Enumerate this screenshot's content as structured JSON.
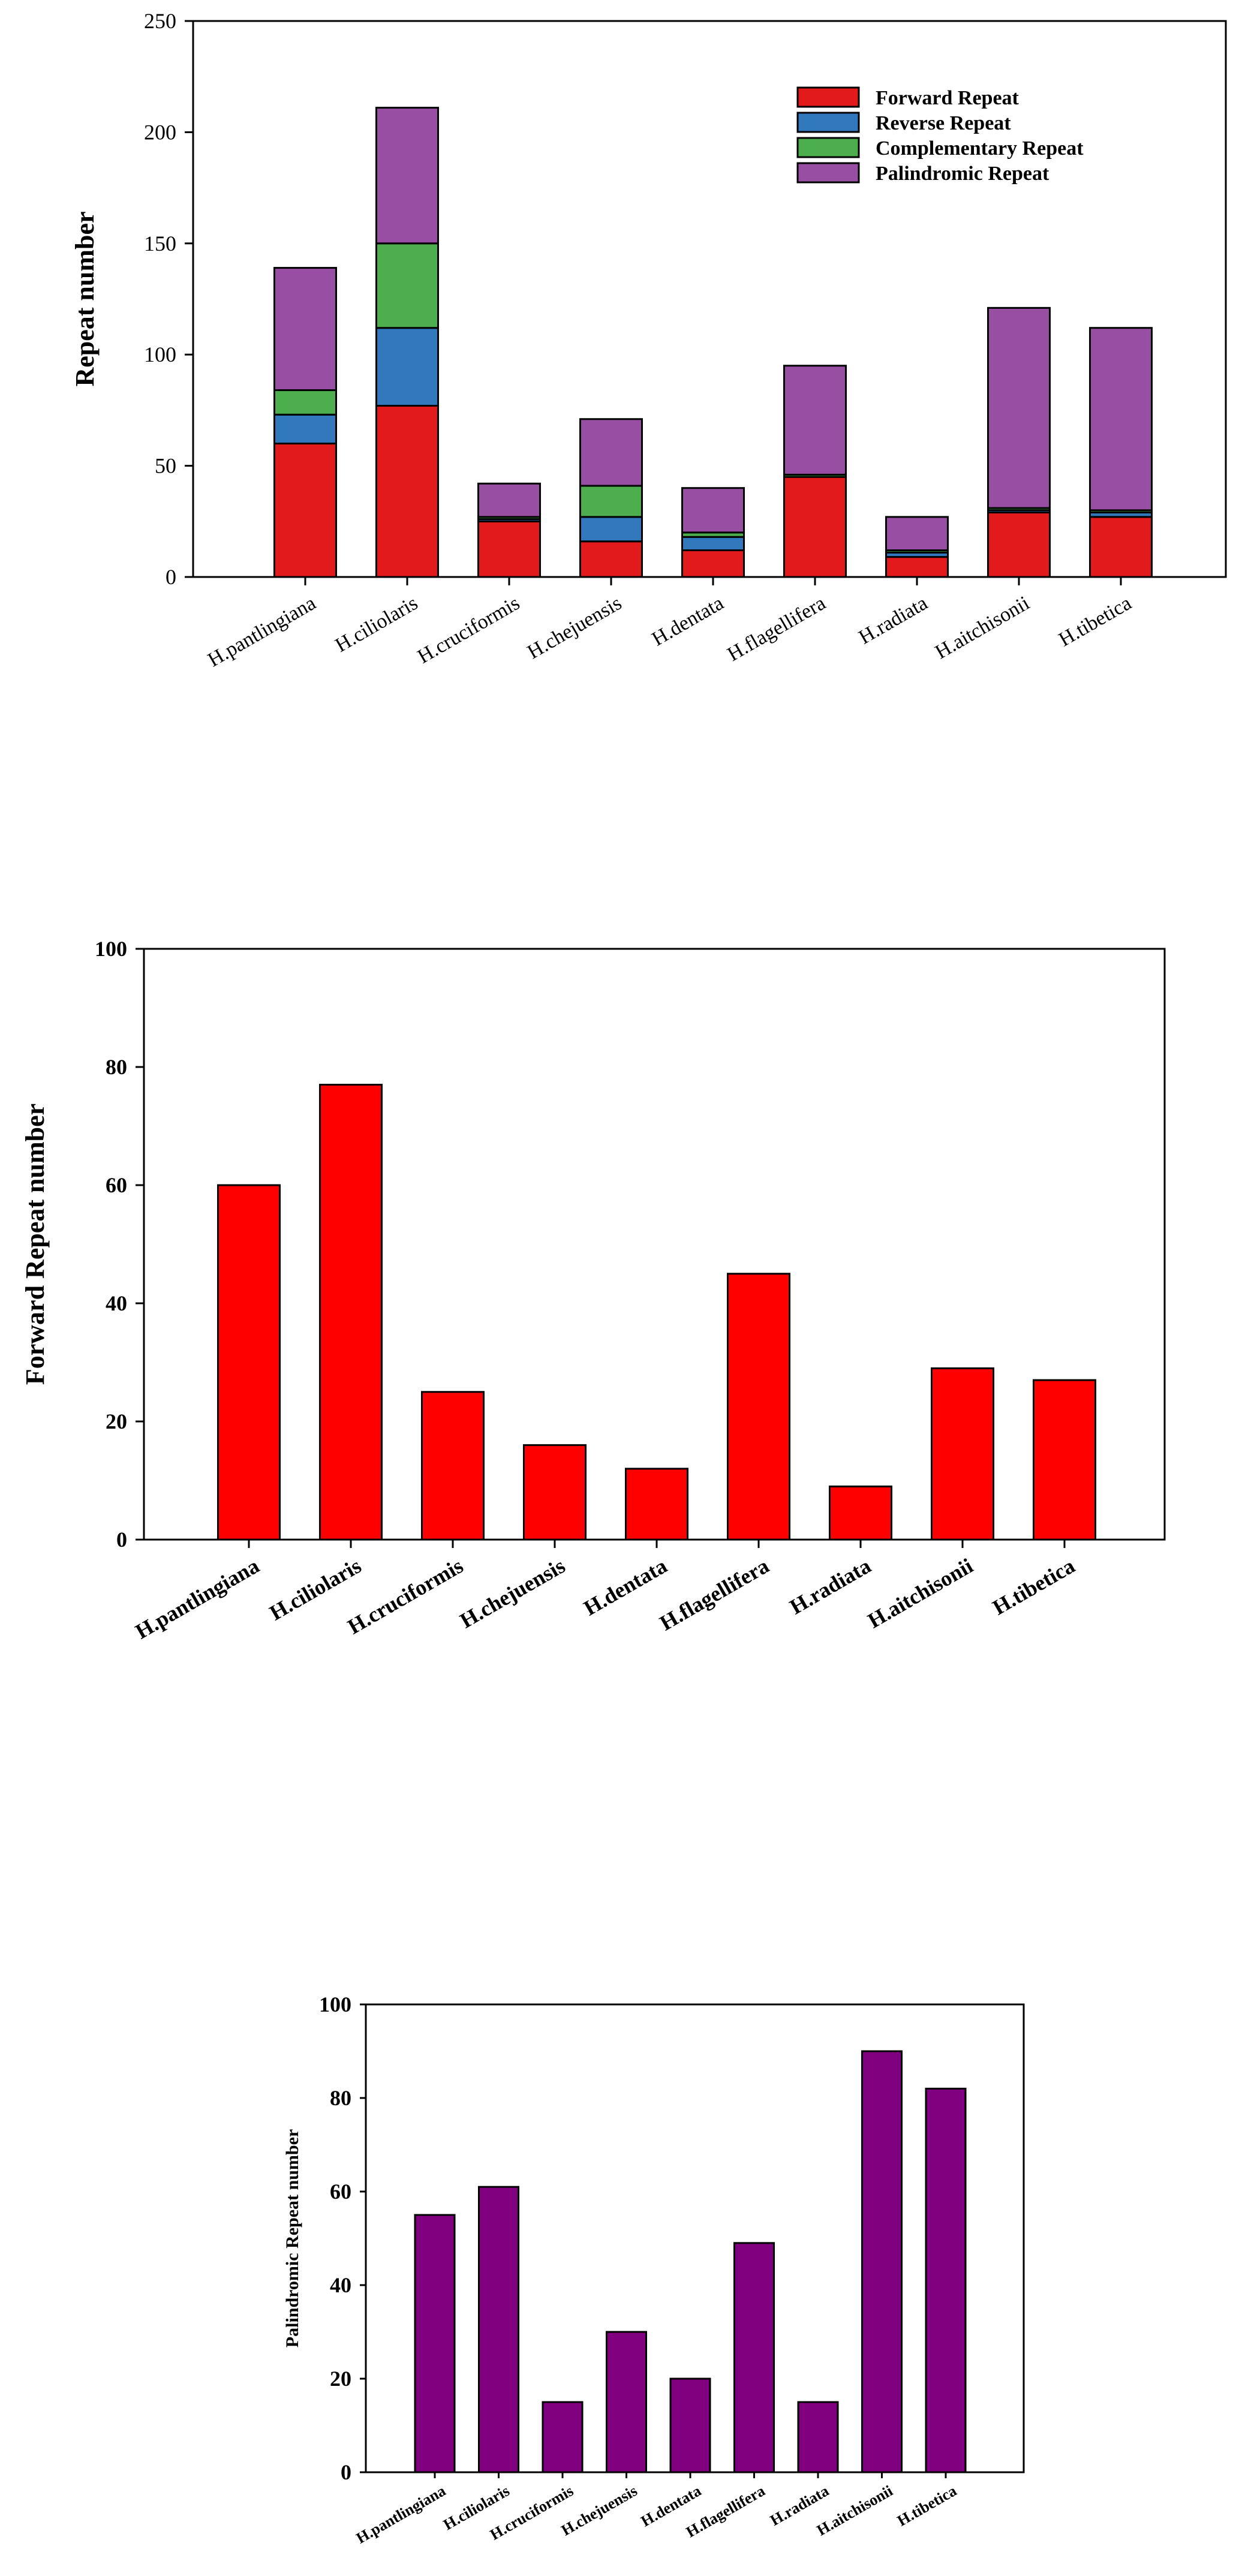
{
  "charts": [
    {
      "type": "bar",
      "stacked": true,
      "categories": [
        "H.pantlingiana",
        "H.ciliolaris",
        "H.cruciformis",
        "H.chejuensis",
        "H.dentata",
        "H.flagellifera",
        "H.radiata",
        "H.aitchisonii",
        "H.tibetica"
      ],
      "series": [
        {
          "name": "Forward Repeat",
          "color": "#e31a1c",
          "values": [
            60,
            77,
            25,
            16,
            12,
            45,
            9,
            29,
            27
          ]
        },
        {
          "name": "Reverse Repeat",
          "color": "#3278bd",
          "values": [
            13,
            35,
            1,
            11,
            6,
            0,
            2,
            1,
            2
          ]
        },
        {
          "name": "Complementary Repeat",
          "color": "#4cae4c",
          "values": [
            11,
            38,
            1,
            14,
            2,
            1,
            1,
            1,
            1
          ]
        },
        {
          "name": "Palindromic Repeat",
          "color": "#984ea3",
          "values": [
            55,
            61,
            15,
            30,
            20,
            49,
            15,
            90,
            82
          ]
        }
      ],
      "ylabel": "Repeat number",
      "ylim": [
        0,
        250
      ],
      "yticks": [
        0,
        50,
        100,
        150,
        200,
        250
      ],
      "legend_position": "top-right",
      "grid": false
    },
    {
      "type": "bar",
      "categories": [
        "H.pantlingiana",
        "H.ciliolaris",
        "H.cruciformis",
        "H.chejuensis",
        "H.dentata",
        "H.flagellifera",
        "H.radiata",
        "H.aitchisonii",
        "H.tibetica"
      ],
      "series": [
        {
          "color": "#ff0000",
          "values": [
            60,
            77,
            25,
            16,
            12,
            45,
            9,
            29,
            27
          ]
        }
      ],
      "ylabel": "Forward Repeat number",
      "ylim": [
        0,
        100
      ],
      "yticks": [
        0,
        20,
        40,
        60,
        80,
        100
      ],
      "grid": false
    },
    {
      "type": "bar",
      "categories": [
        "H.pantlingiana",
        "H.ciliolaris",
        "H.cruciformis",
        "H.chejuensis",
        "H.dentata",
        "H.flagellifera",
        "H.radiata",
        "H.aitchisonii",
        "H.tibetica"
      ],
      "series": [
        {
          "color": "#800080",
          "values": [
            55,
            61,
            15,
            30,
            20,
            49,
            15,
            90,
            82
          ]
        }
      ],
      "ylabel": "Palindromic Repeat number",
      "ylim": [
        0,
        100
      ],
      "yticks": [
        0,
        20,
        40,
        60,
        80,
        100
      ],
      "grid": false
    }
  ]
}
